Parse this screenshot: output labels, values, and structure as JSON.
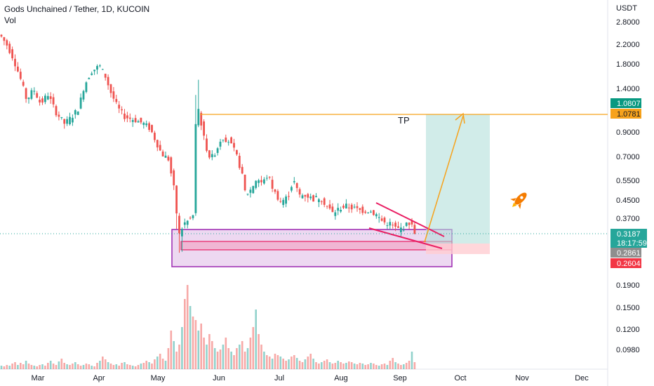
{
  "header": {
    "title": "Gods Unchained / Tether, 1D, KUCOIN",
    "volume_label": "Vol"
  },
  "colors": {
    "up": "#26a69a",
    "down": "#ef5350",
    "tp_line": "#f7a21b",
    "zone_fill": "#e1bee7",
    "zone_border": "#9c27b0",
    "wedge": "#e91e63",
    "target_fill": "#b2dfdb",
    "stop_fill": "#ffcdd2"
  },
  "chart_data": {
    "type": "candlestick",
    "title": "Gods Unchained / Tether, 1D, KUCOIN",
    "currency": "USDT",
    "y_scale": "log",
    "price_axis_ticks": [
      "2.8000",
      "2.2000",
      "1.8000",
      "1.4000",
      "0.9000",
      "0.7000",
      "0.5500",
      "0.4500",
      "0.3700"
    ],
    "volume_axis_ticks": [
      "0.1900",
      "0.1500",
      "0.1200",
      "0.0980"
    ],
    "x_axis_labels": [
      "Mar",
      "Apr",
      "May",
      "Jun",
      "Jul",
      "Aug",
      "Sep",
      "Oct",
      "Nov",
      "Dec"
    ],
    "price_labels": [
      {
        "text": "1.0807",
        "color": "#089981"
      },
      {
        "text": "1.0781",
        "color": "#f7a21b"
      },
      {
        "text": "0.3187",
        "color": "#26a69a"
      },
      {
        "text": "18:17:59",
        "color": "#26a69a"
      },
      {
        "text": "0.2861",
        "color": "#8e8e8e"
      },
      {
        "text": "0.2604",
        "color": "#f23645"
      }
    ],
    "annotations": {
      "tp_label": "TP",
      "tp_level": 1.0781,
      "current_price": 0.3187,
      "countdown": "18:17:59",
      "stop_level": 0.2604,
      "entry_level": 0.2861,
      "rocket_icon": "rocket-icon"
    },
    "price_path": [
      [
        0,
        2.45
      ],
      [
        10,
        2.2
      ],
      [
        18,
        1.95
      ],
      [
        28,
        1.6
      ],
      [
        38,
        1.25
      ],
      [
        48,
        1.4
      ],
      [
        58,
        1.2
      ],
      [
        68,
        1.33
      ],
      [
        80,
        1.1
      ],
      [
        92,
        0.98
      ],
      [
        102,
        1.05
      ],
      [
        112,
        1.15
      ],
      [
        120,
        1.45
      ],
      [
        130,
        1.68
      ],
      [
        142,
        1.78
      ],
      [
        150,
        1.6
      ],
      [
        158,
        1.35
      ],
      [
        168,
        1.15
      ],
      [
        178,
        1.05
      ],
      [
        192,
        1.02
      ],
      [
        205,
        0.98
      ],
      [
        214,
        0.93
      ],
      [
        222,
        0.82
      ],
      [
        230,
        0.72
      ],
      [
        240,
        0.68
      ],
      [
        248,
        0.5
      ],
      [
        255,
        0.31
      ],
      [
        262,
        0.35
      ],
      [
        268,
        0.36
      ],
      [
        275,
        0.38
      ],
      [
        280,
        1.25
      ],
      [
        285,
        1.05
      ],
      [
        292,
        0.8
      ],
      [
        300,
        0.68
      ],
      [
        308,
        0.74
      ],
      [
        316,
        0.86
      ],
      [
        326,
        0.82
      ],
      [
        336,
        0.72
      ],
      [
        344,
        0.6
      ],
      [
        350,
        0.47
      ],
      [
        358,
        0.5
      ],
      [
        366,
        0.56
      ],
      [
        374,
        0.53
      ],
      [
        382,
        0.58
      ],
      [
        390,
        0.49
      ],
      [
        400,
        0.44
      ],
      [
        410,
        0.46
      ],
      [
        418,
        0.55
      ],
      [
        426,
        0.47
      ],
      [
        436,
        0.47
      ],
      [
        446,
        0.45
      ],
      [
        456,
        0.46
      ],
      [
        466,
        0.42
      ],
      [
        474,
        0.39
      ],
      [
        484,
        0.41
      ],
      [
        494,
        0.42
      ],
      [
        504,
        0.41
      ],
      [
        514,
        0.4
      ],
      [
        526,
        0.4
      ],
      [
        536,
        0.385
      ],
      [
        546,
        0.355
      ],
      [
        556,
        0.35
      ],
      [
        566,
        0.33
      ],
      [
        574,
        0.335
      ],
      [
        584,
        0.355
      ],
      [
        592,
        0.3187
      ]
    ],
    "volume_heights": [
      5,
      4,
      6,
      5,
      8,
      10,
      6,
      9,
      7,
      12,
      8,
      6,
      5,
      4,
      6,
      7,
      5,
      9,
      12,
      8,
      6,
      11,
      15,
      9,
      7,
      6,
      8,
      10,
      7,
      5,
      6,
      8,
      7,
      5,
      4,
      9,
      12,
      18,
      14,
      10,
      8,
      6,
      7,
      5,
      9,
      10,
      7,
      6,
      5,
      4,
      6,
      8,
      9,
      12,
      10,
      8,
      14,
      18,
      22,
      15,
      12,
      30,
      55,
      40,
      25,
      35,
      60,
      100,
      120,
      90,
      75,
      70,
      55,
      65,
      45,
      35,
      50,
      40,
      30,
      25,
      28,
      35,
      45,
      30,
      25,
      20,
      30,
      35,
      40,
      25,
      30,
      45,
      60,
      85,
      50,
      35,
      25,
      20,
      18,
      15,
      22,
      20,
      18,
      15,
      12,
      14,
      18,
      20,
      16,
      12,
      10,
      14,
      18,
      22,
      15,
      10,
      8,
      10,
      12,
      14,
      10,
      8,
      9,
      12,
      10,
      8,
      9,
      11,
      10,
      8,
      7,
      9,
      8,
      6,
      7,
      9,
      8,
      6,
      5,
      7,
      8,
      6,
      12,
      16,
      10,
      8,
      6,
      7,
      9,
      12,
      25,
      10,
      8,
      7
    ]
  }
}
